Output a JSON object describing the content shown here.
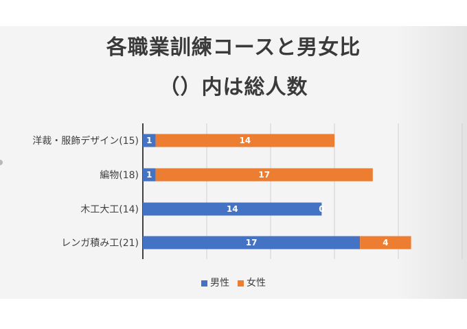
{
  "title_line1": "各職業訓練コースと男女比",
  "title_line2": "（）内は総人数",
  "chart_data": {
    "type": "bar",
    "orientation": "horizontal",
    "stacked": true,
    "categories": [
      "洋裁・服飾デザイン(15)",
      "編物(18)",
      "木工大工(14)",
      "レンガ積み工(21)"
    ],
    "series": [
      {
        "name": "男性",
        "color": "#4472c4",
        "values": [
          1,
          1,
          14,
          17
        ]
      },
      {
        "name": "女性",
        "color": "#ed7d31",
        "values": [
          14,
          17,
          0,
          4
        ]
      }
    ],
    "xlim": [
      0,
      20
    ],
    "grid": true,
    "data_labels": true,
    "legend_position": "bottom"
  }
}
